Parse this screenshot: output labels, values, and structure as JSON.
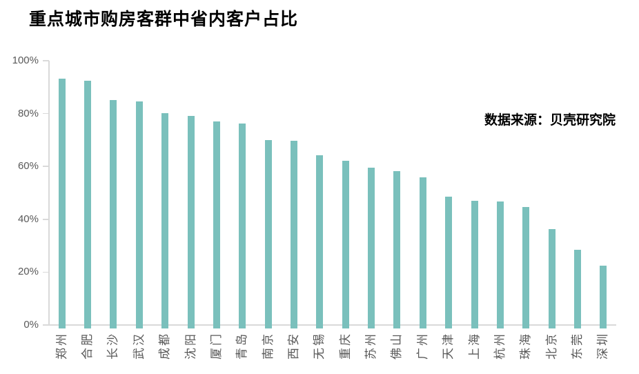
{
  "colors": {
    "bar": "#7ac0bc",
    "axis_line": "#d9d9d9",
    "tick_label": "#595959",
    "title_text": "#000000"
  },
  "chart_data": {
    "type": "bar",
    "title": "重点城市购房客群中省内客户占比",
    "annotation": "数据来源：贝壳研究院",
    "categories": [
      "郑州",
      "合肥",
      "长沙",
      "武汉",
      "成都",
      "沈阳",
      "厦门",
      "青岛",
      "南京",
      "西安",
      "无锡",
      "重庆",
      "苏州",
      "佛山",
      "广州",
      "天津",
      "上海",
      "杭州",
      "珠海",
      "北京",
      "东莞",
      "深圳"
    ],
    "values": [
      93.2,
      92.4,
      85.0,
      84.6,
      80.1,
      79.1,
      77.0,
      76.2,
      70.0,
      69.7,
      64.1,
      62.2,
      59.4,
      58.2,
      55.9,
      48.6,
      47.0,
      46.8,
      44.6,
      36.2,
      28.4,
      22.4
    ],
    "xlabel": "",
    "ylabel": "",
    "ylim": [
      0,
      100
    ],
    "yticks": [
      "0%",
      "20%",
      "40%",
      "60%",
      "80%",
      "100%"
    ],
    "ytick_values": [
      0,
      20,
      40,
      60,
      80,
      100
    ],
    "grid": false,
    "legend_position": "none"
  }
}
